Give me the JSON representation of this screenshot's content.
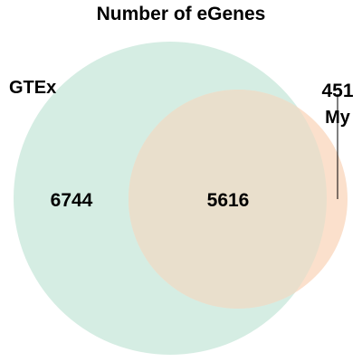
{
  "title": "Number of eGenes",
  "sets": [
    {
      "label": "GTEx",
      "only_count": "6744",
      "color": "#d5ede3"
    },
    {
      "label": "My",
      "only_count": "451",
      "color": "#fbe0cc"
    }
  ],
  "intersection": {
    "count": "5616",
    "color": "#e9dfcc"
  },
  "chart_data": {
    "type": "venn",
    "title": "Number of eGenes",
    "sets": [
      "GTEx",
      "My"
    ],
    "regions": [
      {
        "sets": [
          "GTEx"
        ],
        "value": 6744
      },
      {
        "sets": [
          "GTEx",
          "My"
        ],
        "value": 5616
      },
      {
        "sets": [
          "My"
        ],
        "value": 451
      }
    ]
  }
}
